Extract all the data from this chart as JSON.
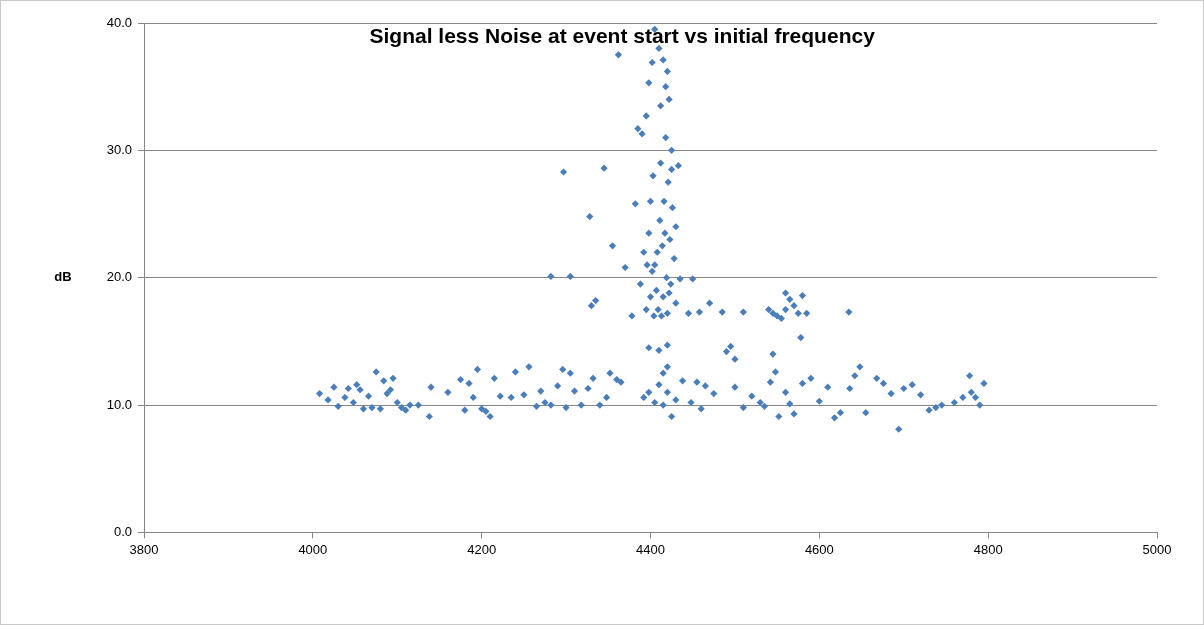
{
  "chart_data": {
    "type": "scatter",
    "title": "Signal less Noise at event start vs initial frequency",
    "ylabel": "dB",
    "xlim": [
      3800,
      5000
    ],
    "xticks": [
      3800,
      4000,
      4200,
      4400,
      4600,
      4800,
      5000
    ],
    "ylim": [
      0,
      40
    ],
    "yticks": [
      {
        "value": 0,
        "label": "0.0"
      },
      {
        "value": 10,
        "label": "10.0"
      },
      {
        "value": 20,
        "label": "20.0"
      },
      {
        "value": 30,
        "label": "30.0"
      },
      {
        "value": 40,
        "label": "40.0"
      }
    ],
    "grid": "y",
    "legend": false,
    "marker": "diamond",
    "series": [
      {
        "color": "#4a7ebb",
        "x": [
          4008,
          4018,
          4025,
          4030,
          4038,
          4042,
          4048,
          4052,
          4056,
          4060,
          4066,
          4070,
          4075,
          4080,
          4084,
          4088,
          4092,
          4095,
          4100,
          4105,
          4110,
          4115,
          4125,
          4138,
          4140,
          4160,
          4175,
          4180,
          4185,
          4190,
          4195,
          4200,
          4205,
          4210,
          4215,
          4222,
          4235,
          4240,
          4250,
          4256,
          4265,
          4270,
          4275,
          4282,
          4290,
          4296,
          4300,
          4305,
          4310,
          4318,
          4326,
          4332,
          4340,
          4348,
          4352,
          4360,
          4365,
          4392,
          4398,
          4405,
          4410,
          4415,
          4420,
          4425,
          4430,
          4438,
          4448,
          4455,
          4460,
          4465,
          4475,
          4490,
          4500,
          4510,
          4520,
          4530,
          4535,
          4542,
          4548,
          4552,
          4560,
          4565,
          4570,
          4580,
          4590,
          4600,
          4610,
          4618,
          4625,
          4636,
          4642,
          4648,
          4655,
          4668,
          4676,
          4685,
          4694,
          4700,
          4710,
          4720,
          4730,
          4738,
          4745,
          4760,
          4770,
          4778,
          4780,
          4785,
          4795,
          4790,
          4282,
          4297,
          4305,
          4328,
          4330,
          4335,
          4345,
          4355,
          4362,
          4370,
          4378,
          4382,
          4385,
          4390,
          4395,
          4398,
          4402,
          4405,
          4410,
          4415,
          4420,
          4422,
          4425,
          4430,
          4435,
          4445,
          4450,
          4458,
          4470,
          4485,
          4510,
          4500,
          4495,
          4388,
          4392,
          4398,
          4400,
          4403,
          4405,
          4407,
          4409,
          4411,
          4412,
          4414,
          4415,
          4416,
          4418,
          4419,
          4420,
          4421,
          4423,
          4424,
          4426,
          4428,
          4430,
          4395,
          4400,
          4402,
          4404,
          4408,
          4413,
          4417,
          4422,
          4425,
          4396,
          4410,
          4420,
          4415,
          4398,
          4420,
          4433,
          4412,
          4418,
          4540,
          4545,
          4550,
          4555,
          4560,
          4565,
          4570,
          4575,
          4580,
          4585,
          4578,
          4560,
          4635,
          4545
        ],
        "values": [
          10.9,
          10.4,
          11.4,
          9.9,
          10.6,
          11.3,
          10.2,
          11.6,
          11.2,
          9.7,
          10.7,
          9.8,
          12.6,
          9.7,
          11.9,
          10.9,
          11.2,
          12.1,
          10.2,
          9.8,
          9.6,
          10.0,
          10.0,
          9.1,
          11.4,
          11.0,
          12.0,
          9.6,
          11.7,
          10.6,
          12.8,
          9.7,
          9.5,
          9.1,
          12.1,
          10.7,
          10.6,
          12.6,
          10.8,
          13.0,
          9.9,
          11.1,
          10.2,
          10.0,
          11.5,
          12.8,
          9.8,
          12.5,
          11.1,
          10.0,
          11.3,
          12.1,
          10.0,
          10.6,
          12.5,
          12.0,
          11.8,
          10.6,
          11.0,
          10.2,
          11.6,
          10.0,
          11.0,
          9.1,
          10.4,
          11.9,
          10.2,
          11.8,
          9.7,
          11.5,
          10.9,
          14.2,
          11.4,
          9.8,
          10.7,
          10.2,
          9.9,
          11.8,
          12.6,
          9.1,
          11.0,
          10.1,
          9.3,
          11.7,
          12.1,
          10.3,
          11.4,
          9.0,
          9.4,
          11.3,
          12.3,
          13.0,
          9.4,
          12.1,
          11.7,
          10.9,
          8.1,
          11.3,
          11.6,
          10.8,
          9.6,
          9.8,
          10.0,
          10.2,
          10.6,
          12.3,
          11.0,
          10.6,
          11.7,
          10.0,
          20.1,
          28.3,
          20.1,
          24.8,
          17.8,
          18.2,
          28.6,
          22.5,
          37.5,
          20.8,
          17.0,
          25.8,
          31.7,
          31.3,
          32.7,
          35.3,
          36.9,
          39.5,
          38.0,
          37.1,
          36.2,
          34.0,
          30.0,
          24.0,
          19.9,
          17.2,
          19.9,
          17.3,
          18.0,
          17.3,
          17.3,
          13.6,
          14.6,
          19.5,
          22.0,
          23.5,
          26.0,
          28.0,
          21.0,
          19.0,
          17.5,
          24.5,
          29.0,
          22.5,
          18.5,
          26.0,
          31.0,
          20.0,
          17.2,
          27.5,
          23.0,
          19.5,
          25.5,
          21.5,
          18.0,
          17.5,
          18.5,
          20.5,
          17.0,
          22.0,
          17.0,
          23.5,
          18.8,
          28.5,
          21.0,
          14.3,
          14.7,
          12.5,
          14.5,
          13.0,
          28.8,
          33.5,
          35.0,
          17.5,
          17.2,
          17.0,
          16.8,
          18.8,
          18.3,
          17.8,
          17.2,
          18.6,
          17.2,
          15.3,
          17.5,
          17.3,
          14.0
        ]
      }
    ]
  }
}
